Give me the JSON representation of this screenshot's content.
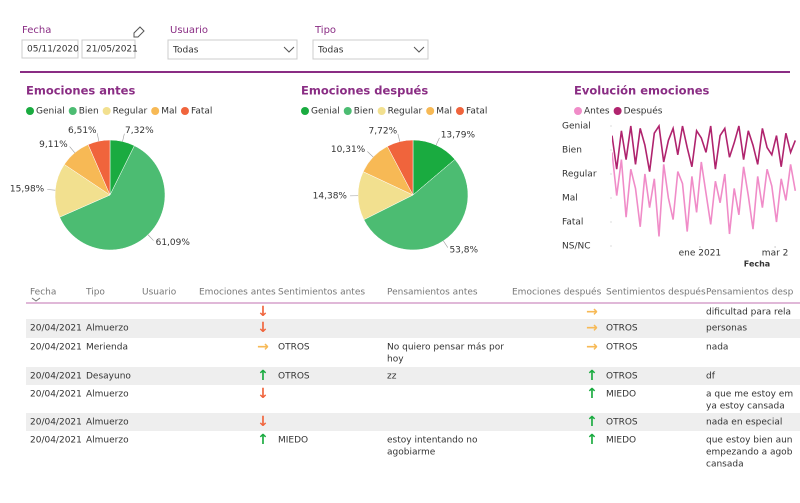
{
  "filters": {
    "fecha": {
      "label": "Fecha",
      "from": "05/11/2020",
      "to": "21/05/2021"
    },
    "usuario": {
      "label": "Usuario",
      "value": "Todas"
    },
    "tipo": {
      "label": "Tipo",
      "value": "Todas"
    }
  },
  "chart_data": [
    {
      "type": "pie",
      "title": "Emociones antes",
      "categories": [
        "Genial",
        "Bien",
        "Regular",
        "Mal",
        "Fatal"
      ],
      "values": [
        7.32,
        61.09,
        15.98,
        9.11,
        6.51
      ],
      "value_labels": [
        "7,32%",
        "61,09%",
        "15,98%",
        "9,11%",
        "6,51%"
      ],
      "colors": [
        "#1aab40",
        "#4cbc72",
        "#f2e08f",
        "#f7b955",
        "#f0643c"
      ]
    },
    {
      "type": "pie",
      "title": "Emociones después",
      "categories": [
        "Genial",
        "Bien",
        "Regular",
        "Mal",
        "Fatal"
      ],
      "values": [
        13.79,
        53.8,
        14.38,
        10.31,
        7.72
      ],
      "value_labels": [
        "13,79%",
        "53,8%",
        "14,38%",
        "10,31%",
        "7,72%"
      ],
      "colors": [
        "#1aab40",
        "#4cbc72",
        "#f2e08f",
        "#f7b955",
        "#f0643c"
      ]
    },
    {
      "type": "line",
      "title": "Evolución emociones",
      "xlabel": "Fecha",
      "x": [
        0,
        1,
        2,
        3,
        4,
        5,
        6,
        7,
        8,
        9,
        10,
        11,
        12,
        13,
        14,
        15,
        16,
        17,
        18,
        19,
        20,
        21,
        22,
        23,
        24,
        25,
        26,
        27,
        28,
        29,
        30,
        31,
        32,
        33,
        34,
        35,
        36,
        37,
        38,
        39
      ],
      "xlim": [
        0,
        40
      ],
      "xticks": [
        {
          "value": 18.7,
          "label": "ene 2021"
        },
        {
          "value": 34.7,
          "label": "mar 2"
        }
      ],
      "ylim": [
        0,
        5
      ],
      "yticks": [
        {
          "value": 0,
          "label": "NS/NC"
        },
        {
          "value": 1,
          "label": "Fatal"
        },
        {
          "value": 2,
          "label": "Mal"
        },
        {
          "value": 3,
          "label": "Regular"
        },
        {
          "value": 4,
          "label": "Bien"
        },
        {
          "value": 5,
          "label": "Genial"
        }
      ],
      "series": [
        {
          "name": "Antes",
          "color": "#f08cc8",
          "values": [
            3.9,
            2.1,
            3.6,
            1.2,
            3.2,
            2.4,
            0.8,
            3.0,
            1.6,
            2.8,
            0.4,
            3.4,
            2.0,
            1.1,
            3.1,
            2.6,
            0.6,
            2.9,
            1.4,
            3.5,
            2.2,
            0.9,
            2.7,
            1.8,
            3.0,
            0.5,
            2.4,
            1.3,
            3.3,
            2.1,
            0.7,
            2.9,
            1.6,
            3.2,
            2.5,
            1.0,
            2.8,
            1.9,
            3.4,
            2.3
          ]
        },
        {
          "name": "Después",
          "color": "#b0246e",
          "values": [
            4.6,
            3.2,
            4.8,
            3.6,
            5,
            3.4,
            4.9,
            4.2,
            3.1,
            4.7,
            5,
            3.5,
            4.4,
            4.9,
            3.8,
            5,
            4.1,
            3.3,
            4.8,
            4.5,
            3.9,
            5,
            3.2,
            4.6,
            4.9,
            3.7,
            4.3,
            5,
            3.6,
            4.8,
            4.2,
            3.4,
            4.9,
            4.1,
            3.8,
            4.6,
            3.3,
            4.7,
            3.9,
            4.4
          ]
        }
      ]
    }
  ],
  "table": {
    "columns": [
      "Fecha",
      "Tipo",
      "Usuario",
      "Emociones antes",
      "Sentimientos antes",
      "Pensamientos antes",
      "Emociones después",
      "Sentimientos después",
      "Pensamientos desp"
    ],
    "rows": [
      [
        null,
        null,
        null,
        "↓",
        null,
        null,
        "→",
        null,
        [
          "dificultad para rela"
        ]
      ],
      [
        "20/04/2021",
        "Almuerzo",
        null,
        "↓",
        null,
        null,
        "→",
        "OTROS",
        [
          "personas"
        ]
      ],
      [
        "20/04/2021",
        "Merienda",
        null,
        "→",
        "OTROS",
        [
          "No quiero pensar más por",
          "hoy"
        ],
        "→",
        "OTROS",
        [
          "nada"
        ]
      ],
      [
        "20/04/2021",
        "Desayuno",
        null,
        "↑",
        "OTROS",
        [
          "zz"
        ],
        "↑",
        "OTROS",
        [
          "df"
        ]
      ],
      [
        "20/04/2021",
        "Almuerzo",
        null,
        "↓",
        null,
        null,
        "↑",
        "MIEDO",
        [
          "a que me estoy em",
          "ya estoy cansada"
        ]
      ],
      [
        "20/04/2021",
        "Almuerzo",
        null,
        "↓",
        null,
        null,
        "↑",
        "OTROS",
        [
          "nada en especial"
        ]
      ],
      [
        "20/04/2021",
        "Almuerzo",
        null,
        "↑",
        "MIEDO",
        [
          "estoy intentando no",
          "agobiarme"
        ],
        "↑",
        "MIEDO",
        [
          "que estoy bien aun",
          "empezando a agob",
          "cansada"
        ]
      ]
    ]
  }
}
